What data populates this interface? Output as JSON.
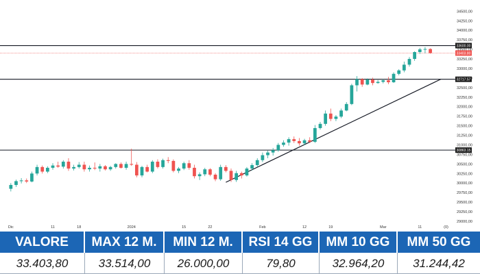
{
  "chart_data": {
    "type": "candlestick",
    "colors": {
      "up": "#26a69a",
      "down": "#ef5350",
      "line": "#131722",
      "axis_text": "#333333",
      "price_box": "#1e1e1e",
      "last_box": "#ef5350"
    },
    "y_ticks": [
      "34500,00",
      "34250,00",
      "34000,00",
      "33750,00",
      "33500,00",
      "33250,00",
      "33000,00",
      "32750,00",
      "32500,00",
      "32250,00",
      "32000,00",
      "31750,00",
      "31500,00",
      "31250,00",
      "31000,00",
      "30750,00",
      "30500,00",
      "30250,00",
      "30000,00",
      "29750,00",
      "29500,00",
      "29250,00",
      "29000,00"
    ],
    "ylim": [
      29000,
      34650
    ],
    "x_ticks": [
      {
        "index": 0,
        "label": "Dic"
      },
      {
        "index": 8,
        "label": "11"
      },
      {
        "index": 13,
        "label": "18"
      },
      {
        "index": 23,
        "label": "2024"
      },
      {
        "index": 33,
        "label": "15"
      },
      {
        "index": 38,
        "label": "22"
      },
      {
        "index": 48,
        "label": "Feb"
      },
      {
        "index": 56,
        "label": "12"
      },
      {
        "index": 61,
        "label": "19"
      },
      {
        "index": 71,
        "label": "Mar"
      },
      {
        "index": 78,
        "label": "11"
      },
      {
        "index": 83,
        "label": "(0)"
      }
    ],
    "x_count": 85,
    "levels": [
      {
        "value": 33600.0,
        "label": "33600.00"
      },
      {
        "value": 32717.57,
        "label": "32717.57"
      },
      {
        "value": 30863.15,
        "label": "30863.15"
      }
    ],
    "last_price": {
      "value": 33403.8,
      "label": "33403.80"
    },
    "trendline": [
      {
        "index": 41,
        "value": 30020
      },
      {
        "index": 82,
        "value": 32720
      }
    ],
    "candles": [
      [
        29850,
        30000,
        29780,
        29950
      ],
      [
        29950,
        30090,
        29900,
        30050
      ],
      [
        30050,
        30130,
        29990,
        30070
      ],
      [
        30070,
        30120,
        30000,
        30040
      ],
      [
        30040,
        30300,
        30020,
        30250
      ],
      [
        30250,
        30480,
        30200,
        30420
      ],
      [
        30420,
        30460,
        30250,
        30300
      ],
      [
        30300,
        30440,
        30260,
        30400
      ],
      [
        30400,
        30520,
        30350,
        30460
      ],
      [
        30460,
        30560,
        30400,
        30430
      ],
      [
        30430,
        30600,
        30380,
        30560
      ],
      [
        30560,
        30650,
        30320,
        30380
      ],
      [
        30380,
        30480,
        30330,
        30420
      ],
      [
        30420,
        30550,
        30380,
        30480
      ],
      [
        30480,
        30560,
        30300,
        30360
      ],
      [
        30360,
        30460,
        30300,
        30400
      ],
      [
        30400,
        30540,
        30340,
        30380
      ],
      [
        30380,
        30500,
        30300,
        30440
      ],
      [
        30440,
        30470,
        30330,
        30360
      ],
      [
        30360,
        30450,
        30320,
        30420
      ],
      [
        30420,
        30520,
        30380,
        30500
      ],
      [
        30500,
        30540,
        30380,
        30400
      ],
      [
        30400,
        30560,
        30350,
        30500
      ],
      [
        30500,
        30900,
        30450,
        30480
      ],
      [
        30480,
        30550,
        30150,
        30200
      ],
      [
        30200,
        30450,
        30150,
        30420
      ],
      [
        30420,
        30480,
        30280,
        30300
      ],
      [
        30300,
        30600,
        30260,
        30560
      ],
      [
        30560,
        30620,
        30380,
        30420
      ],
      [
        30420,
        30640,
        30380,
        30600
      ],
      [
        30600,
        30680,
        30520,
        30580
      ],
      [
        30580,
        30620,
        30280,
        30320
      ],
      [
        30320,
        30420,
        30260,
        30380
      ],
      [
        30380,
        30560,
        30340,
        30520
      ],
      [
        30520,
        30600,
        30350,
        30400
      ],
      [
        30400,
        30480,
        30120,
        30180
      ],
      [
        30180,
        30280,
        30080,
        30230
      ],
      [
        30230,
        30400,
        30180,
        30360
      ],
      [
        30360,
        30390,
        30180,
        30220
      ],
      [
        30220,
        30260,
        30050,
        30100
      ],
      [
        30100,
        30480,
        30060,
        30420
      ],
      [
        30420,
        30470,
        30280,
        30320
      ],
      [
        30320,
        30380,
        30030,
        30080
      ],
      [
        30080,
        30320,
        30030,
        30260
      ],
      [
        30260,
        30300,
        30120,
        30200
      ],
      [
        30200,
        30420,
        30170,
        30380
      ],
      [
        30380,
        30520,
        30330,
        30470
      ],
      [
        30470,
        30650,
        30420,
        30600
      ],
      [
        30600,
        30800,
        30550,
        30730
      ],
      [
        30730,
        30850,
        30650,
        30800
      ],
      [
        30800,
        30920,
        30720,
        30860
      ],
      [
        30860,
        31050,
        30820,
        31000
      ],
      [
        31000,
        31120,
        30950,
        31060
      ],
      [
        31060,
        31200,
        30980,
        31150
      ],
      [
        31150,
        31220,
        31050,
        31100
      ],
      [
        31100,
        31180,
        30980,
        31040
      ],
      [
        31040,
        31160,
        30990,
        31120
      ],
      [
        31120,
        31200,
        31050,
        31080
      ],
      [
        31080,
        31520,
        31050,
        31440
      ],
      [
        31440,
        31600,
        31400,
        31550
      ],
      [
        31550,
        31900,
        31500,
        31820
      ],
      [
        31820,
        31950,
        31620,
        31680
      ],
      [
        31680,
        31780,
        31620,
        31740
      ],
      [
        31740,
        31950,
        31700,
        31900
      ],
      [
        31900,
        32120,
        31880,
        32070
      ],
      [
        32070,
        32600,
        32040,
        32560
      ],
      [
        32560,
        32800,
        32400,
        32720
      ],
      [
        32720,
        32750,
        32520,
        32580
      ],
      [
        32580,
        32740,
        32560,
        32710
      ],
      [
        32710,
        32760,
        32560,
        32620
      ],
      [
        32620,
        32700,
        32600,
        32650
      ],
      [
        32650,
        32720,
        32610,
        32690
      ],
      [
        32690,
        32780,
        32590,
        32640
      ],
      [
        32640,
        32900,
        32620,
        32860
      ],
      [
        32860,
        32980,
        32820,
        32950
      ],
      [
        32950,
        33180,
        32900,
        33100
      ],
      [
        33100,
        33300,
        33050,
        33250
      ],
      [
        33250,
        33450,
        33200,
        33430
      ],
      [
        33430,
        33540,
        33380,
        33500
      ],
      [
        33500,
        33560,
        33400,
        33510
      ],
      [
        33510,
        33530,
        33390,
        33404
      ]
    ]
  },
  "stats": {
    "headers": [
      "VALORE",
      "MAX 12 M.",
      "MIN 12 M.",
      "RSI 14 GG",
      "MM 10 GG",
      "MM 50 GG"
    ],
    "values": [
      "33.403,80",
      "33.514,00",
      "26.000,00",
      "79,80",
      "32.964,20",
      "31.244,42"
    ]
  }
}
